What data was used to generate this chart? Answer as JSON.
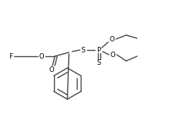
{
  "bg_color": "#ffffff",
  "line_color": "#4a4a4a",
  "line_width": 1.0,
  "font_size": 6.0,
  "figsize": [
    2.31,
    1.6
  ],
  "dpi": 100,
  "xlim": [
    0,
    231
  ],
  "ylim": [
    0,
    160
  ]
}
